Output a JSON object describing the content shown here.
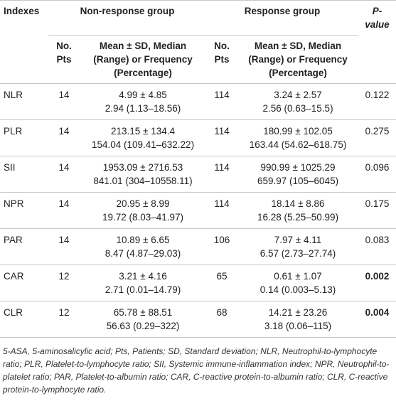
{
  "table": {
    "headers": {
      "indexes": "Indexes",
      "non_response": "Non-response group",
      "response": "Response group",
      "p_value": "P-value",
      "pts": "No. Pts",
      "stat": "Mean ± SD, Median (Range) or Frequency (Percentage)"
    },
    "rows": [
      {
        "index": "NLR",
        "non_response": {
          "pts": 14,
          "mean_sd": "4.99 ± 4.85",
          "median_range": "2.94 (1.13–18.56)"
        },
        "response": {
          "pts": 114,
          "mean_sd": "3.24 ± 2.57",
          "median_range": "2.56 (0.63–15.5)"
        },
        "p_value": 0.122,
        "bold": false
      },
      {
        "index": "PLR",
        "non_response": {
          "pts": 14,
          "mean_sd": "213.15 ± 134.4",
          "median_range": "154.04 (109.41–632.22)"
        },
        "response": {
          "pts": 114,
          "mean_sd": "180.99 ± 102.05",
          "median_range": "163.44 (54.62–618.75)"
        },
        "p_value": 0.275,
        "bold": false
      },
      {
        "index": "SII",
        "non_response": {
          "pts": 14,
          "mean_sd": "1953.09 ± 2716.53",
          "median_range": "841.01 (304–10558.11)"
        },
        "response": {
          "pts": 114,
          "mean_sd": "990.99 ± 1025.29",
          "median_range": "659.97 (105–6045)"
        },
        "p_value": 0.096,
        "bold": false
      },
      {
        "index": "NPR",
        "non_response": {
          "pts": 14,
          "mean_sd": "20.95 ± 8.99",
          "median_range": "19.72 (8.03–41.97)"
        },
        "response": {
          "pts": 114,
          "mean_sd": "18.14 ± 8.86",
          "median_range": "16.28 (5.25–50.99)"
        },
        "p_value": 0.175,
        "bold": false
      },
      {
        "index": "PAR",
        "non_response": {
          "pts": 14,
          "mean_sd": "10.89 ± 6.65",
          "median_range": "8.47 (4.87–29.03)"
        },
        "response": {
          "pts": 106,
          "mean_sd": "7.97 ± 4.11",
          "median_range": "6.57 (2.73–27.74)"
        },
        "p_value": 0.083,
        "bold": false
      },
      {
        "index": "CAR",
        "non_response": {
          "pts": 12,
          "mean_sd": "3.21 ± 4.16",
          "median_range": "2.71 (0.01–14.79)"
        },
        "response": {
          "pts": 65,
          "mean_sd": "0.61 ± 1.07",
          "median_range": "0.14 (0.003–5.13)"
        },
        "p_value": 0.002,
        "bold": true
      },
      {
        "index": "CLR",
        "non_response": {
          "pts": 12,
          "mean_sd": "65.78 ± 88.51",
          "median_range": "56.63 (0.29–322)"
        },
        "response": {
          "pts": 68,
          "mean_sd": "14.21 ± 23.26",
          "median_range": "3.18 (0.06–115)"
        },
        "p_value": 0.004,
        "bold": true
      }
    ],
    "footnote": "5-ASA, 5-aminosalicylic acid; Pts, Patients; SD, Standard deviation; NLR, Neutrophil-to-lymphocyte ratio; PLR, Platelet-to-lymphocyte ratio; SII, Systemic immune-inflammation index; NPR, Neutrophil-to-platelet ratio; PAR, Platelet-to-albumin ratio; CAR, C-reactive protein-to-albumin ratio; CLR, C-reactive protein-to-lymphocyte ratio."
  }
}
